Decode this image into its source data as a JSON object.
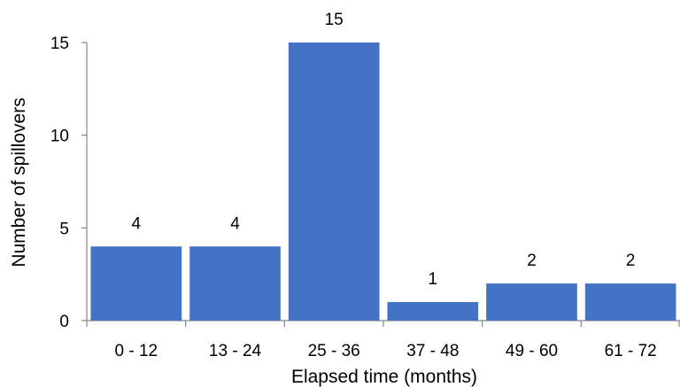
{
  "chart_data": {
    "type": "bar",
    "categories": [
      "0 - 12",
      "13 - 24",
      "25 - 36",
      "37 - 48",
      "49 - 60",
      "61 - 72"
    ],
    "values": [
      4,
      4,
      15,
      1,
      2,
      2
    ],
    "data_labels": [
      "4",
      "4",
      "15",
      "1",
      "2",
      "2"
    ],
    "title": "",
    "xlabel": "Elapsed time (months)",
    "ylabel": "Number of spillovers",
    "ylim": [
      0,
      15
    ],
    "yticks": [
      0,
      5,
      10,
      15
    ],
    "ytick_labels": [
      "0",
      "5",
      "10",
      "15"
    ],
    "grid": false,
    "legend": "none",
    "colors": {
      "bar": "#4472C4"
    }
  }
}
